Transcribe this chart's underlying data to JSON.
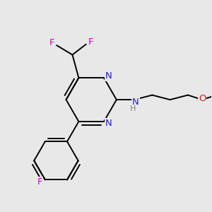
{
  "bg_color": "#e8e8e8",
  "bond_color": "#000000",
  "N_color": "#2020cc",
  "F_color": "#cc00cc",
  "O_color": "#cc2020",
  "H_color": "#808080",
  "bond_width": 1.4,
  "figsize": [
    3.0,
    3.0
  ],
  "dpi": 100,
  "xlim": [
    0,
    10
  ],
  "ylim": [
    0,
    10
  ]
}
